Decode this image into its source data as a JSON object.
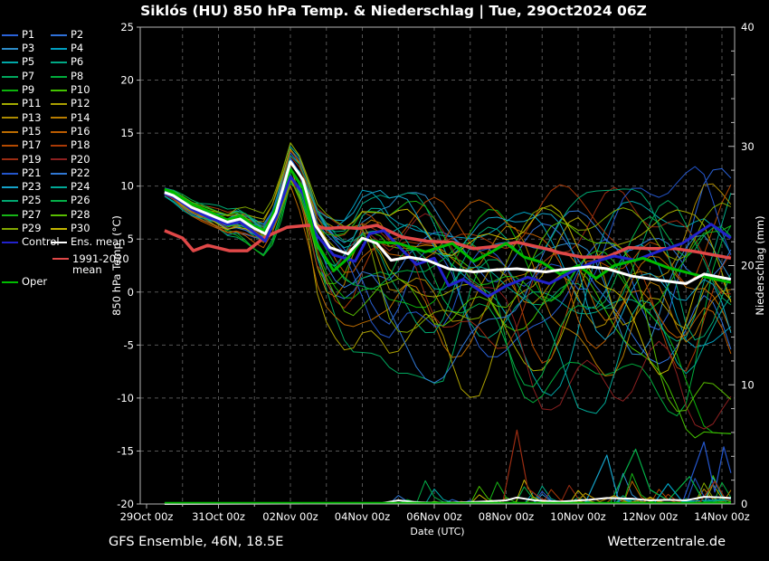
{
  "title": "Siklós  (HU)  850 hPa Temp. & Niederschlag | Tue, 29Oct2024 06Z",
  "footer": {
    "left": "GFS Ensemble, 46N, 18.5E",
    "right": "Wetterzentrale.de"
  },
  "colors": {
    "background": "#000000",
    "axis": "#b4b4b4",
    "grid": "#555555",
    "text": "#ffffff",
    "ens_mean": "#ffffff",
    "control": "#2222cc",
    "oper": "#00bb00",
    "climate_mean": "#e04848"
  },
  "legend": {
    "rows": [
      {
        "l": {
          "label": "P1",
          "color": "#2a62d8"
        },
        "r": {
          "label": "P2",
          "color": "#2f70d8"
        }
      },
      {
        "l": {
          "label": "P3",
          "color": "#2d8cc8"
        },
        "r": {
          "label": "P4",
          "color": "#009fc0"
        }
      },
      {
        "l": {
          "label": "P5",
          "color": "#00a8a8"
        },
        "r": {
          "label": "P6",
          "color": "#00a884"
        }
      },
      {
        "l": {
          "label": "P7",
          "color": "#00a85e"
        },
        "r": {
          "label": "P8",
          "color": "#00ac3c"
        }
      },
      {
        "l": {
          "label": "P9",
          "color": "#0cb40c"
        },
        "r": {
          "label": "P10",
          "color": "#44c400"
        }
      },
      {
        "l": {
          "label": "P11",
          "color": "#a4ac00"
        },
        "r": {
          "label": "P12",
          "color": "#aca000"
        }
      },
      {
        "l": {
          "label": "P13",
          "color": "#ac8a00"
        },
        "r": {
          "label": "P14",
          "color": "#b87c00"
        }
      },
      {
        "l": {
          "label": "P15",
          "color": "#bc6c00"
        },
        "r": {
          "label": "P16",
          "color": "#bc5c00"
        }
      },
      {
        "l": {
          "label": "P17",
          "color": "#b44a00"
        },
        "r": {
          "label": "P18",
          "color": "#aa3a06"
        }
      },
      {
        "l": {
          "label": "P19",
          "color": "#9a2c12"
        },
        "r": {
          "label": "P20",
          "color": "#8c2020"
        }
      },
      {
        "l": {
          "label": "P21",
          "color": "#2456cc"
        },
        "r": {
          "label": "P22",
          "color": "#3078d4"
        }
      },
      {
        "l": {
          "label": "P23",
          "color": "#14a2c8"
        },
        "r": {
          "label": "P24",
          "color": "#00a896"
        }
      },
      {
        "l": {
          "label": "P25",
          "color": "#00a871"
        },
        "r": {
          "label": "P26",
          "color": "#04b048"
        }
      },
      {
        "l": {
          "label": "P27",
          "color": "#16b416"
        },
        "r": {
          "label": "P28",
          "color": "#58bd00"
        }
      },
      {
        "l": {
          "label": "P29",
          "color": "#82a800"
        },
        "r": {
          "label": "P30",
          "color": "#c4b600"
        }
      },
      {
        "l": {
          "label": "Control",
          "color": "#2222cc"
        },
        "r": {
          "label": "Ens. mean",
          "color": "#ffffff"
        }
      },
      {
        "tall": true,
        "l": {
          "label": "Oper",
          "color": "#00bb00"
        },
        "r": {
          "label": "1991-2020 mean",
          "color": "#e04848"
        }
      }
    ]
  },
  "chart_data": {
    "type": "line",
    "title": "Siklós  (HU)  850 hPa Temp. & Niederschlag | Tue, 29Oct2024 06Z",
    "x_axis": {
      "label": "Date (UTC)",
      "tick_labels": [
        "29Oct 00z",
        "31Oct 00z",
        "02Nov 00z",
        "04Nov 00z",
        "06Nov 00z",
        "08Nov 00z",
        "10Nov 00z",
        "12Nov 00z",
        "14Nov 00z"
      ],
      "tick_days": [
        0,
        2,
        4,
        6,
        8,
        10,
        12,
        14,
        16
      ],
      "range_days": [
        0,
        16.35
      ]
    },
    "y_left": {
      "label": "850 hPa Temp. (°C)",
      "ticks": [
        25,
        20,
        15,
        10,
        5,
        0,
        -5,
        -10,
        -15,
        -20
      ],
      "range": [
        -20,
        25
      ],
      "grid": true
    },
    "y_right": {
      "label": "Niederschlag (mm)",
      "ticks": [
        40,
        30,
        20,
        10,
        0
      ],
      "minor_step": 2,
      "range": [
        0,
        40
      ]
    },
    "series": {
      "ens_mean": {
        "label": "Ens. mean",
        "color": "#ffffff",
        "unit": "°C",
        "points": [
          [
            0.5,
            9.4
          ],
          [
            0.75,
            9.1
          ],
          [
            1.25,
            8.0
          ],
          [
            1.75,
            7.3
          ],
          [
            2.25,
            6.6
          ],
          [
            2.6,
            6.9
          ],
          [
            3.0,
            6.0
          ],
          [
            3.3,
            5.5
          ],
          [
            3.6,
            7.5
          ],
          [
            4.0,
            12.3
          ],
          [
            4.35,
            10.6
          ],
          [
            4.7,
            6.3
          ],
          [
            5.1,
            4.2
          ],
          [
            5.6,
            3.6
          ],
          [
            6.0,
            5.1
          ],
          [
            6.4,
            4.6
          ],
          [
            6.8,
            3.0
          ],
          [
            7.3,
            3.3
          ],
          [
            7.8,
            3.0
          ],
          [
            8.4,
            2.2
          ],
          [
            9.1,
            1.9
          ],
          [
            9.7,
            2.1
          ],
          [
            10.3,
            2.2
          ],
          [
            11.1,
            1.9
          ],
          [
            11.5,
            2.1
          ],
          [
            12.3,
            2.4
          ],
          [
            12.8,
            2.2
          ],
          [
            13.5,
            1.5
          ],
          [
            14.3,
            1.1
          ],
          [
            15.0,
            0.8
          ],
          [
            15.5,
            1.7
          ],
          [
            16.25,
            1.2
          ]
        ]
      },
      "oper": {
        "label": "Oper",
        "color": "#00bb00",
        "unit": "°C",
        "points": [
          [
            0.5,
            9.7
          ],
          [
            0.75,
            9.4
          ],
          [
            1.25,
            8.3
          ],
          [
            1.75,
            7.6
          ],
          [
            2.25,
            6.8
          ],
          [
            2.6,
            7.2
          ],
          [
            3.0,
            6.2
          ],
          [
            3.3,
            5.8
          ],
          [
            3.6,
            8.0
          ],
          [
            4.0,
            11.6
          ],
          [
            4.35,
            9.8
          ],
          [
            4.7,
            4.8
          ],
          [
            5.2,
            2.0
          ],
          [
            5.6,
            3.2
          ],
          [
            6.0,
            5.0
          ],
          [
            6.5,
            4.7
          ],
          [
            7.0,
            4.6
          ],
          [
            7.75,
            3.8
          ],
          [
            8.5,
            4.6
          ],
          [
            9.1,
            2.9
          ],
          [
            9.6,
            3.8
          ],
          [
            10.0,
            4.6
          ],
          [
            10.5,
            3.3
          ],
          [
            11.0,
            2.8
          ],
          [
            11.5,
            1.7
          ],
          [
            12.0,
            2.5
          ],
          [
            12.5,
            1.3
          ],
          [
            13.0,
            2.5
          ],
          [
            13.8,
            3.2
          ],
          [
            14.5,
            2.3
          ],
          [
            15.2,
            1.7
          ],
          [
            15.7,
            1.3
          ],
          [
            16.25,
            0.9
          ]
        ]
      },
      "control": {
        "label": "Control",
        "color": "#2222cc",
        "unit": "°C",
        "points": [
          [
            0.5,
            9.3
          ],
          [
            0.75,
            9.0
          ],
          [
            1.25,
            7.8
          ],
          [
            1.75,
            7.0
          ],
          [
            2.25,
            6.4
          ],
          [
            2.6,
            6.6
          ],
          [
            3.0,
            5.6
          ],
          [
            3.3,
            4.8
          ],
          [
            3.6,
            7.0
          ],
          [
            4.0,
            10.9
          ],
          [
            4.35,
            9.3
          ],
          [
            4.7,
            5.5
          ],
          [
            5.2,
            3.5
          ],
          [
            5.8,
            2.9
          ],
          [
            6.2,
            5.5
          ],
          [
            6.6,
            5.8
          ],
          [
            7.1,
            4.0
          ],
          [
            7.5,
            2.6
          ],
          [
            8.0,
            3.2
          ],
          [
            8.4,
            0.6
          ],
          [
            8.8,
            1.2
          ],
          [
            9.5,
            -0.4
          ],
          [
            10.0,
            0.6
          ],
          [
            10.6,
            1.4
          ],
          [
            11.2,
            0.8
          ],
          [
            11.8,
            1.9
          ],
          [
            12.4,
            2.8
          ],
          [
            13.0,
            3.4
          ],
          [
            13.6,
            3.0
          ],
          [
            14.2,
            3.8
          ],
          [
            14.9,
            4.6
          ],
          [
            15.7,
            6.4
          ],
          [
            16.25,
            5.1
          ]
        ]
      },
      "climate_mean": {
        "label": "1991-2020 mean",
        "color": "#e04848",
        "unit": "°C",
        "points": [
          [
            0.5,
            5.8
          ],
          [
            1.0,
            5.1
          ],
          [
            1.3,
            3.9
          ],
          [
            1.7,
            4.4
          ],
          [
            2.3,
            3.9
          ],
          [
            2.8,
            3.9
          ],
          [
            3.3,
            5.2
          ],
          [
            3.9,
            6.1
          ],
          [
            4.5,
            6.3
          ],
          [
            5.0,
            6.0
          ],
          [
            5.5,
            6.1
          ],
          [
            5.9,
            6.0
          ],
          [
            6.4,
            6.3
          ],
          [
            7.1,
            5.2
          ],
          [
            7.8,
            4.8
          ],
          [
            8.5,
            4.7
          ],
          [
            9.1,
            4.1
          ],
          [
            9.7,
            4.3
          ],
          [
            10.3,
            4.7
          ],
          [
            11.1,
            4.1
          ],
          [
            11.5,
            3.7
          ],
          [
            12.1,
            3.3
          ],
          [
            12.8,
            3.3
          ],
          [
            13.4,
            4.2
          ],
          [
            14.0,
            4.1
          ],
          [
            14.7,
            4.1
          ],
          [
            15.3,
            3.8
          ],
          [
            16.25,
            3.2
          ]
        ]
      },
      "ens_mean_precip": {
        "label": "Ens. mean",
        "color": "#ffffff",
        "unit": "mm",
        "points": [
          [
            0.5,
            0
          ],
          [
            6.5,
            0.05
          ],
          [
            7.0,
            0.3
          ],
          [
            7.5,
            0.15
          ],
          [
            8.0,
            0.1
          ],
          [
            9.0,
            0.15
          ],
          [
            10.0,
            0.3
          ],
          [
            10.3,
            0.55
          ],
          [
            10.8,
            0.3
          ],
          [
            11.5,
            0.2
          ],
          [
            12.3,
            0.35
          ],
          [
            12.8,
            0.5
          ],
          [
            13.5,
            0.45
          ],
          [
            14.0,
            0.3
          ],
          [
            14.5,
            0.35
          ],
          [
            15.0,
            0.3
          ],
          [
            15.5,
            0.6
          ],
          [
            16.0,
            0.55
          ],
          [
            16.25,
            0.5
          ]
        ]
      },
      "oper_precip": {
        "label": "Oper",
        "color": "#00bb00",
        "unit": "mm",
        "points": [
          [
            0.5,
            0
          ],
          [
            16.25,
            0
          ]
        ]
      }
    },
    "precip_spikes": [
      {
        "color": "#9a2c12",
        "points": [
          [
            9.9,
            0
          ],
          [
            10.3,
            6.2
          ],
          [
            10.6,
            1.3
          ],
          [
            11.0,
            0.4
          ],
          [
            11.4,
            0.1
          ]
        ]
      },
      {
        "color": "#14a2c8",
        "points": [
          [
            12.2,
            0.1
          ],
          [
            12.8,
            4.1
          ],
          [
            13.1,
            0.6
          ],
          [
            13.5,
            0.1
          ]
        ]
      },
      {
        "color": "#04b048",
        "points": [
          [
            12.9,
            0.1
          ],
          [
            13.6,
            4.6
          ],
          [
            14.0,
            1.2
          ],
          [
            14.5,
            0.3
          ],
          [
            15.1,
            2.3
          ],
          [
            15.5,
            0.2
          ],
          [
            16.25,
            0.3
          ]
        ]
      },
      {
        "color": "#2456cc",
        "points": [
          [
            14.9,
            0.1
          ],
          [
            15.5,
            5.2
          ],
          [
            15.8,
            1.0
          ],
          [
            16.05,
            4.8
          ],
          [
            16.25,
            2.6
          ]
        ]
      },
      {
        "color": "#009fc0",
        "points": [
          [
            14.1,
            0
          ],
          [
            14.5,
            1.7
          ],
          [
            14.9,
            0.2
          ],
          [
            16.25,
            0.4
          ]
        ]
      },
      {
        "color": "#9a2c12",
        "points": [
          [
            15.4,
            0.2
          ],
          [
            15.8,
            1.9
          ],
          [
            16.1,
            0.4
          ],
          [
            16.25,
            0.3
          ]
        ]
      },
      {
        "color": "#ac8a00",
        "points": [
          [
            11.9,
            0
          ],
          [
            12.2,
            0.9
          ],
          [
            12.6,
            0.2
          ],
          [
            13.0,
            0.7
          ],
          [
            13.4,
            0.1
          ],
          [
            14.0,
            0.5
          ],
          [
            14.4,
            0.1
          ]
        ]
      }
    ],
    "ensemble": {
      "members": [
        "P1",
        "P2",
        "P3",
        "P4",
        "P5",
        "P6",
        "P7",
        "P8",
        "P9",
        "P10",
        "P11",
        "P12",
        "P13",
        "P14",
        "P15",
        "P16",
        "P17",
        "P18",
        "P19",
        "P20",
        "P21",
        "P22",
        "P23",
        "P24",
        "P25",
        "P26",
        "P27",
        "P28",
        "P29",
        "P30"
      ],
      "spread_envelope": {
        "days": [
          0.5,
          1,
          2,
          3,
          3.5,
          4,
          4.5,
          5,
          6,
          7,
          8,
          9,
          10,
          11,
          12,
          13,
          14,
          15,
          16.25
        ],
        "up": [
          0.4,
          0.7,
          1.2,
          1.6,
          1.8,
          2.0,
          2.5,
          3.5,
          4.5,
          5.5,
          6.0,
          6.5,
          7.5,
          8.5,
          8.5,
          9.0,
          9.5,
          10.0,
          10.5
        ],
        "down": [
          0.4,
          0.9,
          1.5,
          1.8,
          2.2,
          3.0,
          4.5,
          7.0,
          10.0,
          10.0,
          10.5,
          11.0,
          11.5,
          12.0,
          12.5,
          13.0,
          13.5,
          14.0,
          13.5
        ]
      }
    }
  }
}
